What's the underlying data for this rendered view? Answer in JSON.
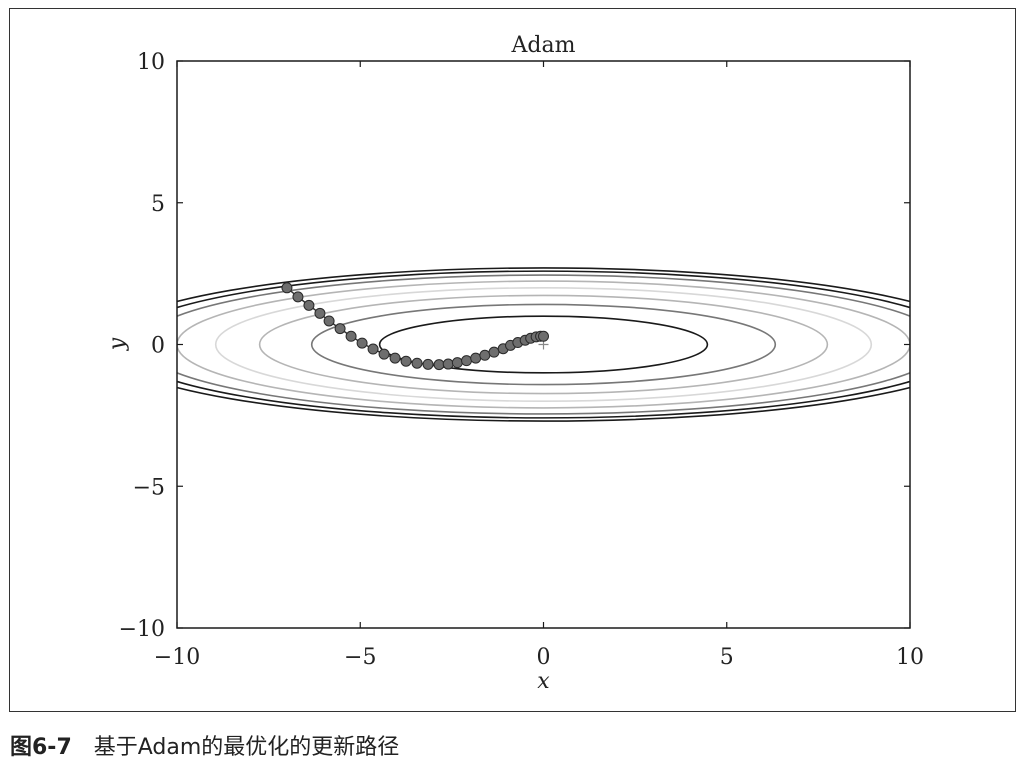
{
  "caption": {
    "figure_number": "图6-7",
    "text": "基于Adam的最优化的更新路径"
  },
  "chart_data": {
    "type": "line",
    "title": "Adam",
    "xlabel": "x",
    "ylabel": "y",
    "xlim": [
      -10,
      10
    ],
    "ylim": [
      -10,
      10
    ],
    "x_ticks": [
      -10,
      -5,
      0,
      5,
      10
    ],
    "y_ticks": [
      -10,
      -5,
      0,
      5,
      10
    ],
    "x_tick_labels": [
      "−10",
      "−5",
      "0",
      "5",
      "10"
    ],
    "y_tick_labels": [
      "−10",
      "−5",
      "0",
      "5",
      "10"
    ],
    "grid": false,
    "function": "f(x, y) = x^2 / 20 + y^2",
    "minimum_marker": [
      0,
      0
    ],
    "contours": [
      {
        "level": 1.0,
        "color": "#1a1a1a"
      },
      {
        "level": 2.0,
        "color": "#777777"
      },
      {
        "level": 3.0,
        "color": "#b5b5b5"
      },
      {
        "level": 4.0,
        "color": "#d8d8d8"
      },
      {
        "level": 5.0,
        "color": "#b5b5b5"
      },
      {
        "level": 6.0,
        "color": "#777777"
      },
      {
        "level": 6.7,
        "color": "#1a1a1a"
      },
      {
        "level": 7.3,
        "color": "#1a1a1a"
      }
    ],
    "series": [
      {
        "marker_color": "#6e6e6e",
        "line_color": "#333333",
        "points": [
          [
            -7.0,
            2.0
          ],
          [
            -6.7,
            1.68
          ],
          [
            -6.4,
            1.38
          ],
          [
            -6.1,
            1.1
          ],
          [
            -5.85,
            0.83
          ],
          [
            -5.55,
            0.56
          ],
          [
            -5.25,
            0.29
          ],
          [
            -4.95,
            0.05
          ],
          [
            -4.65,
            -0.16
          ],
          [
            -4.35,
            -0.34
          ],
          [
            -4.05,
            -0.48
          ],
          [
            -3.75,
            -0.59
          ],
          [
            -3.45,
            -0.66
          ],
          [
            -3.15,
            -0.7
          ],
          [
            -2.85,
            -0.71
          ],
          [
            -2.6,
            -0.69
          ],
          [
            -2.35,
            -0.64
          ],
          [
            -2.1,
            -0.57
          ],
          [
            -1.85,
            -0.48
          ],
          [
            -1.6,
            -0.38
          ],
          [
            -1.35,
            -0.27
          ],
          [
            -1.1,
            -0.15
          ],
          [
            -0.9,
            -0.03
          ],
          [
            -0.7,
            0.07
          ],
          [
            -0.5,
            0.15
          ],
          [
            -0.35,
            0.22
          ],
          [
            -0.2,
            0.27
          ],
          [
            -0.08,
            0.29
          ],
          [
            0.0,
            0.29
          ]
        ]
      }
    ]
  }
}
